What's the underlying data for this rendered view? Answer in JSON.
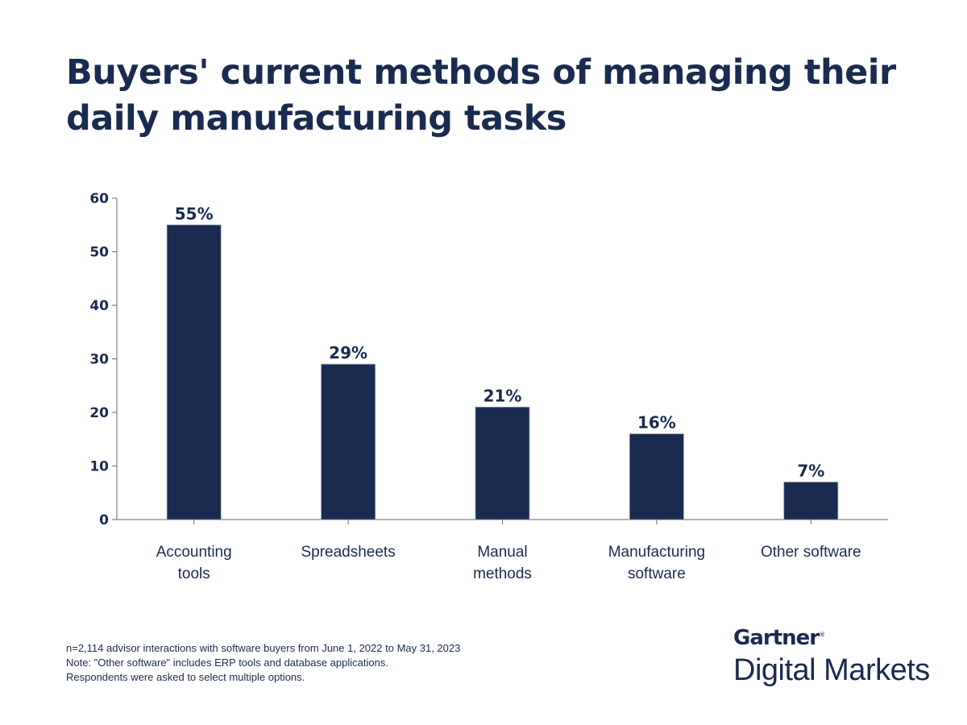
{
  "chart_data": {
    "type": "bar",
    "title": "Buyers' current methods of managing their daily manufacturing tasks",
    "categories": [
      [
        "Accounting",
        "tools"
      ],
      [
        "Spreadsheets"
      ],
      [
        "Manual",
        "methods"
      ],
      [
        "Manufacturing",
        "software"
      ],
      [
        "Other software"
      ]
    ],
    "values": [
      55,
      29,
      21,
      16,
      7
    ],
    "data_labels": [
      "55%",
      "29%",
      "21%",
      "16%",
      "7%"
    ],
    "xlabel": "",
    "ylabel": "",
    "ylim": [
      0,
      60
    ],
    "yticks": [
      0,
      10,
      20,
      30,
      40,
      50,
      60
    ],
    "grid": false,
    "bar_color": "#1a2b50"
  },
  "notes": [
    "n=2,114 advisor interactions with software buyers from June 1, 2022 to May 31, 2023",
    "Note: \"Other software\" includes ERP tools and database applications.",
    "Respondents were asked to select multiple options."
  ],
  "logo": {
    "brand": "Gartner",
    "product": "Digital Markets"
  }
}
